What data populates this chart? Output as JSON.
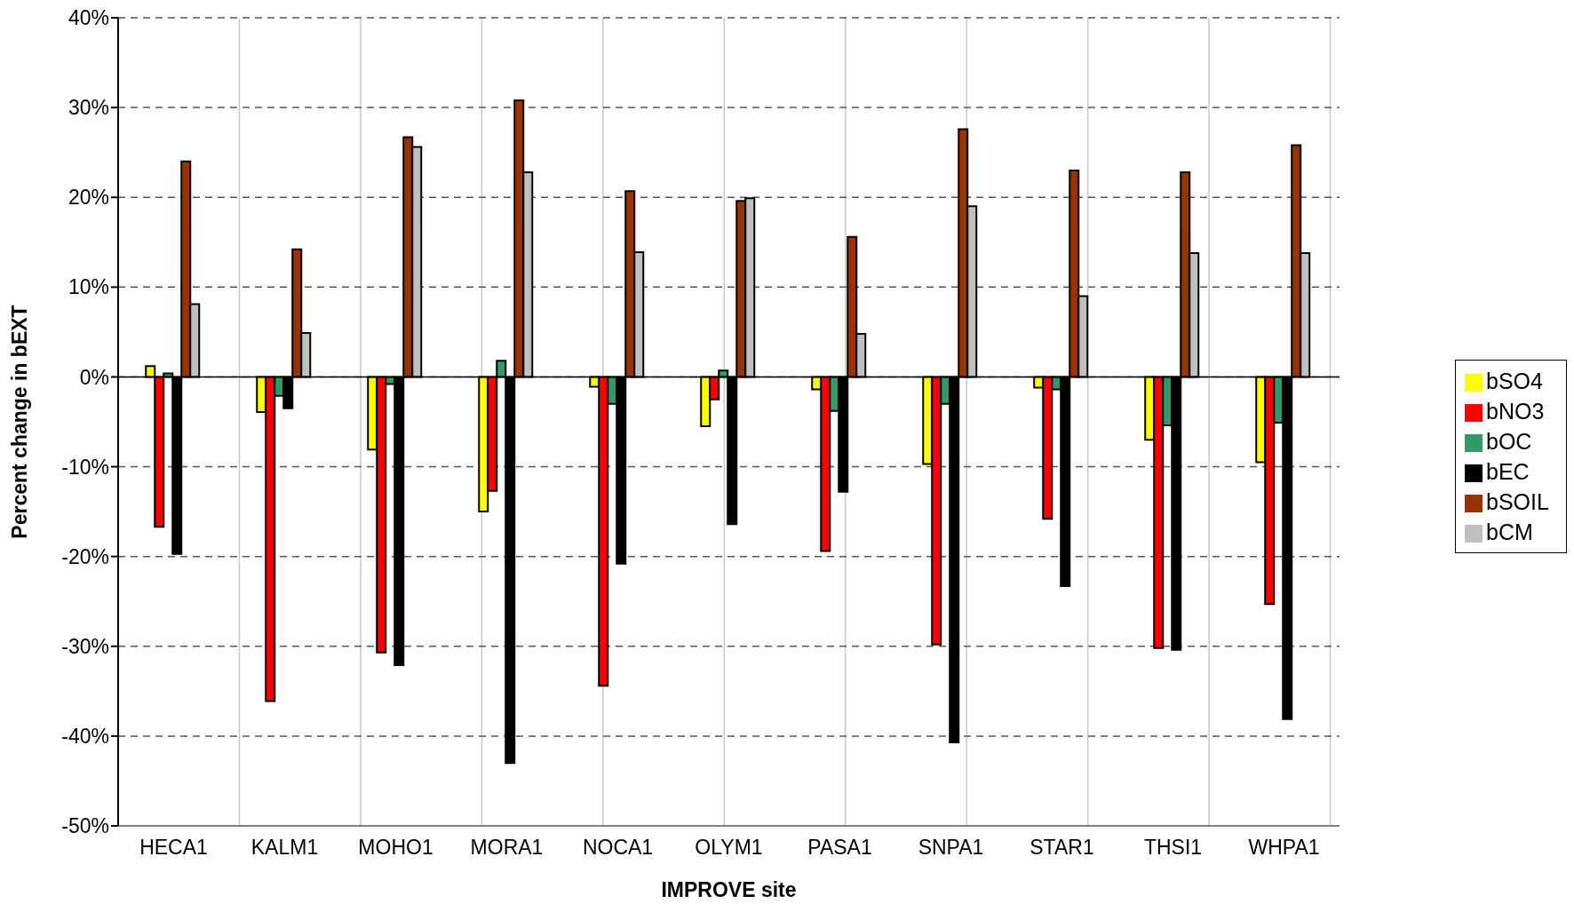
{
  "chart_data": {
    "type": "bar",
    "xlabel": "IMPROVE site",
    "ylabel": "Percent change in bEXT",
    "categories": [
      "HECA1",
      "KALM1",
      "MOHO1",
      "MORA1",
      "NOCA1",
      "OLYM1",
      "PASA1",
      "SNPA1",
      "STAR1",
      "THSI1",
      "WHPA1"
    ],
    "series": [
      {
        "name": "bSO4",
        "color": "#ffff00",
        "values": [
          1.2,
          -3.9,
          -8.1,
          -15.0,
          -1.1,
          -5.5,
          -1.4,
          -9.7,
          -1.2,
          -7.0,
          -9.5
        ]
      },
      {
        "name": "bNO3",
        "color": "#ff0000",
        "values": [
          -16.7,
          -36.1,
          -30.7,
          -12.7,
          -34.4,
          -2.5,
          -19.4,
          -29.8,
          -15.8,
          -30.2,
          -25.3
        ]
      },
      {
        "name": "bOC",
        "color": "#339966",
        "values": [
          0.4,
          -2.1,
          -0.8,
          1.8,
          -3.0,
          0.7,
          -3.8,
          -3.0,
          -1.4,
          -5.4,
          -5.1
        ]
      },
      {
        "name": "bEC",
        "color": "#000000",
        "values": [
          -19.7,
          -3.5,
          -32.1,
          -43.0,
          -20.8,
          -16.4,
          -12.8,
          -40.7,
          -23.3,
          -30.4,
          -38.1
        ]
      },
      {
        "name": "bSOIL",
        "color": "#993300",
        "values": [
          24.0,
          14.2,
          26.7,
          30.8,
          20.7,
          19.6,
          15.6,
          27.6,
          23.0,
          22.8,
          25.8
        ]
      },
      {
        "name": "bCM",
        "color": "#c0c0c0",
        "values": [
          8.1,
          4.9,
          25.6,
          22.8,
          13.9,
          19.9,
          4.8,
          19.0,
          9.0,
          13.8,
          13.8
        ]
      }
    ],
    "ylim": [
      -50,
      40
    ],
    "yticks": [
      {
        "value": -50,
        "label": "-50%"
      },
      {
        "value": -40,
        "label": "-40%"
      },
      {
        "value": -30,
        "label": "-30%"
      },
      {
        "value": -20,
        "label": "-20%"
      },
      {
        "value": -10,
        "label": "-10%"
      },
      {
        "value": 0,
        "label": "0%"
      },
      {
        "value": 10,
        "label": "10%"
      },
      {
        "value": 20,
        "label": "20%"
      },
      {
        "value": 30,
        "label": "30%"
      },
      {
        "value": 40,
        "label": "40%"
      }
    ],
    "grid": true,
    "legend": "right"
  }
}
